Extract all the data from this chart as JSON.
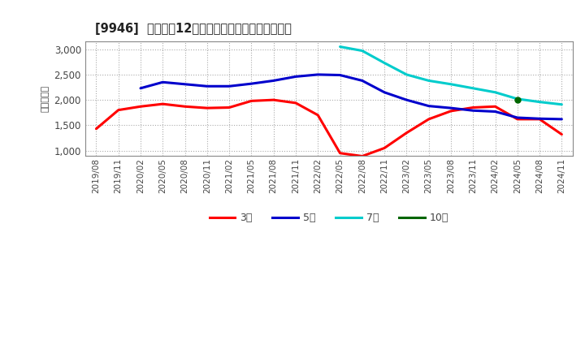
{
  "title": "[9946]  経常利益12か月移動合計の標準偏差の推移",
  "ylabel": "（百万円）",
  "ylim": [
    900,
    3150
  ],
  "yticks": [
    1000,
    1500,
    2000,
    2500,
    3000
  ],
  "background_color": "#ffffff",
  "plot_bg_color": "#ffffff",
  "grid_color": "#aaaaaa",
  "x_labels": [
    "2019/08",
    "2019/11",
    "2020/02",
    "2020/05",
    "2020/08",
    "2020/11",
    "2021/02",
    "2021/05",
    "2021/08",
    "2021/11",
    "2022/02",
    "2022/05",
    "2022/08",
    "2022/11",
    "2023/02",
    "2023/05",
    "2023/08",
    "2023/11",
    "2024/02",
    "2024/05",
    "2024/08",
    "2024/11"
  ],
  "series": {
    "3年": {
      "color": "#ff0000",
      "values": [
        1430,
        1800,
        1870,
        1920,
        1870,
        1840,
        1850,
        1980,
        2000,
        1940,
        1700,
        950,
        890,
        1050,
        1350,
        1620,
        1780,
        1850,
        1870,
        1620,
        1620,
        1320
      ]
    },
    "5年": {
      "color": "#0000cc",
      "values": [
        null,
        null,
        2230,
        2350,
        2310,
        2270,
        2270,
        2320,
        2380,
        2460,
        2500,
        2490,
        2380,
        2150,
        2000,
        1880,
        1840,
        1790,
        1770,
        1650,
        1630,
        1620
      ]
    },
    "7年": {
      "color": "#00cccc",
      "values": [
        null,
        null,
        null,
        null,
        null,
        null,
        null,
        null,
        null,
        null,
        null,
        3050,
        2970,
        2730,
        2500,
        2380,
        2310,
        2230,
        2150,
        2020,
        1960,
        1910
      ]
    },
    "10年": {
      "color": "#006600",
      "values": [
        null,
        null,
        null,
        null,
        null,
        null,
        null,
        null,
        null,
        null,
        null,
        null,
        null,
        null,
        null,
        null,
        null,
        null,
        null,
        2000,
        null,
        null
      ]
    }
  },
  "legend_labels": [
    "3年",
    "5年",
    "7年",
    "10年"
  ],
  "legend_colors": [
    "#ff0000",
    "#0000cc",
    "#00cccc",
    "#006600"
  ]
}
